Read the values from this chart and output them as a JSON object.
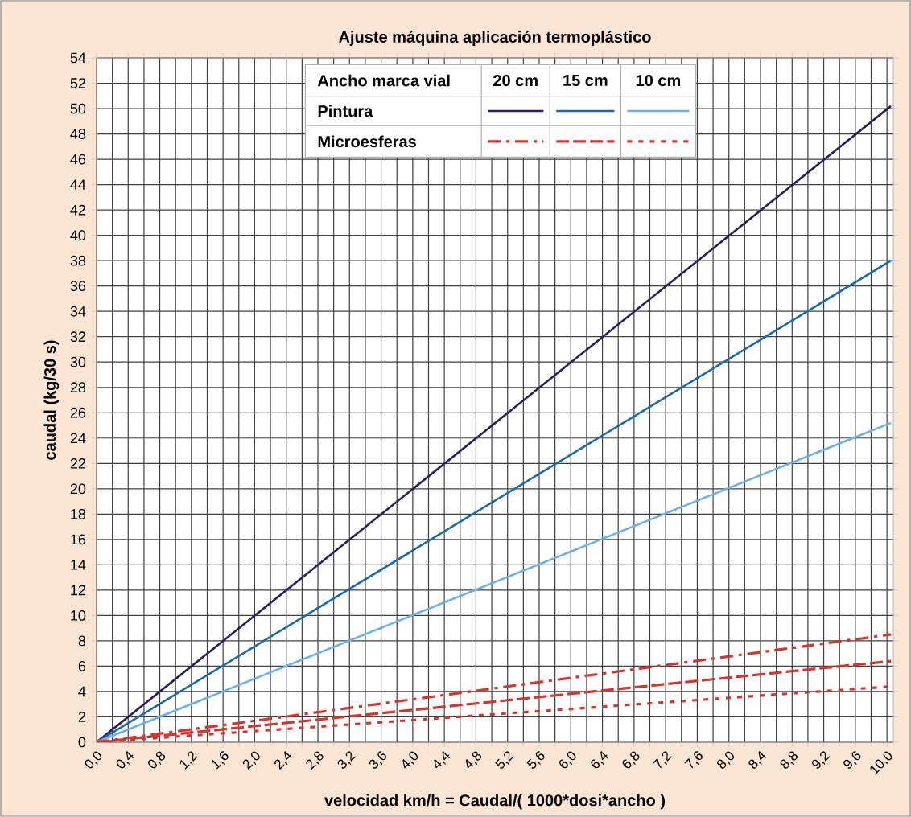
{
  "chart_data": {
    "type": "line",
    "title": "Ajuste máquina aplicación termoplástico",
    "xlabel": "velocidad km/h = Caudal/( 1000*dosi*ancho )",
    "ylabel": "caudal (kg/30 s)",
    "xlim": [
      0,
      10.08
    ],
    "ylim": [
      0,
      54
    ],
    "grid": true,
    "xticks": [
      {
        "value": 0,
        "label": "0,0"
      },
      {
        "value": 0.2,
        "label": null
      },
      {
        "value": 0.4,
        "label": "0,4"
      },
      {
        "value": 0.6,
        "label": null
      },
      {
        "value": 0.8,
        "label": "0,8"
      },
      {
        "value": 1.0,
        "label": null
      },
      {
        "value": 1.2,
        "label": "1,2"
      },
      {
        "value": 1.4,
        "label": null
      },
      {
        "value": 1.6,
        "label": "1,6"
      },
      {
        "value": 1.8,
        "label": null
      },
      {
        "value": 2.0,
        "label": "2,0"
      },
      {
        "value": 2.2,
        "label": null
      },
      {
        "value": 2.4,
        "label": "2,4"
      },
      {
        "value": 2.6,
        "label": null
      },
      {
        "value": 2.8,
        "label": "2,8"
      },
      {
        "value": 3.0,
        "label": null
      },
      {
        "value": 3.2,
        "label": "3,2"
      },
      {
        "value": 3.4,
        "label": null
      },
      {
        "value": 3.6,
        "label": "3,6"
      },
      {
        "value": 3.8,
        "label": null
      },
      {
        "value": 4.0,
        "label": "4,0"
      },
      {
        "value": 4.2,
        "label": null
      },
      {
        "value": 4.4,
        "label": "4,4"
      },
      {
        "value": 4.6,
        "label": null
      },
      {
        "value": 4.8,
        "label": "4,8"
      },
      {
        "value": 5.0,
        "label": null
      },
      {
        "value": 5.2,
        "label": "5,2"
      },
      {
        "value": 5.4,
        "label": null
      },
      {
        "value": 5.6,
        "label": "5,6"
      },
      {
        "value": 5.8,
        "label": null
      },
      {
        "value": 6.0,
        "label": "6,0"
      },
      {
        "value": 6.2,
        "label": null
      },
      {
        "value": 6.4,
        "label": "6,4"
      },
      {
        "value": 6.6,
        "label": null
      },
      {
        "value": 6.8,
        "label": "6,8"
      },
      {
        "value": 7.0,
        "label": null
      },
      {
        "value": 7.2,
        "label": "7,2"
      },
      {
        "value": 7.4,
        "label": null
      },
      {
        "value": 7.6,
        "label": "7,6"
      },
      {
        "value": 7.8,
        "label": null
      },
      {
        "value": 8.0,
        "label": "8,0"
      },
      {
        "value": 8.2,
        "label": null
      },
      {
        "value": 8.4,
        "label": "8,4"
      },
      {
        "value": 8.6,
        "label": null
      },
      {
        "value": 8.8,
        "label": "8,8"
      },
      {
        "value": 9.0,
        "label": null
      },
      {
        "value": 9.2,
        "label": "9,2"
      },
      {
        "value": 9.4,
        "label": null
      },
      {
        "value": 9.6,
        "label": "9,6"
      },
      {
        "value": 9.8,
        "label": null
      },
      {
        "value": 10.0,
        "label": "10,0"
      }
    ],
    "yticks": [
      0,
      2,
      4,
      6,
      8,
      10,
      12,
      14,
      16,
      18,
      20,
      22,
      24,
      26,
      28,
      30,
      32,
      34,
      36,
      38,
      40,
      42,
      44,
      46,
      48,
      50,
      52,
      54
    ],
    "x": [
      0,
      10.05
    ],
    "series": [
      {
        "color": "#2e1d5c",
        "values": [
          0,
          50.2
        ],
        "line_style": "solid"
      },
      {
        "color": "#1b6aa8",
        "values": [
          0,
          38.0
        ],
        "line_style": "solid"
      },
      {
        "color": "#6cb1e6",
        "values": [
          0,
          25.2
        ],
        "line_style": "solid"
      },
      {
        "color": "#d1372e",
        "values": [
          0,
          8.5
        ],
        "line_style": "dashdot"
      },
      {
        "color": "#d1372e",
        "values": [
          0,
          6.4
        ],
        "line_style": "dashed"
      },
      {
        "color": "#d1372e",
        "values": [
          0,
          4.4
        ],
        "line_style": "dotted"
      }
    ],
    "annotations": [
      "Ancho marca vial",
      "20 cm",
      "15 cm",
      "10 cm",
      "Pintura",
      "Microesferas"
    ]
  }
}
